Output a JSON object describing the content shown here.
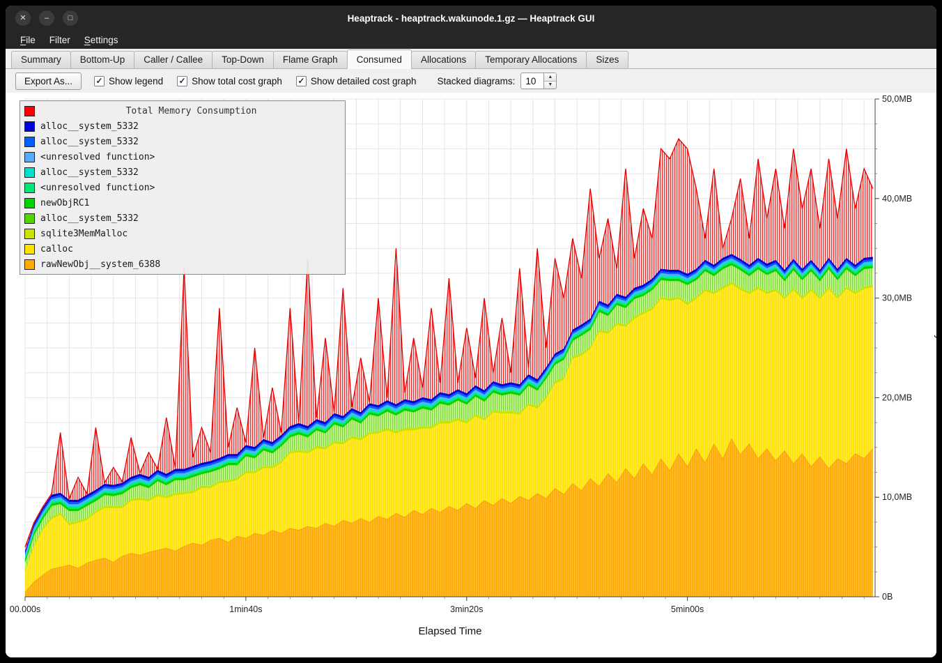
{
  "window": {
    "title": "Heaptrack - heaptrack.wakunode.1.gz — Heaptrack GUI",
    "controls": [
      {
        "name": "close",
        "glyph": "✕"
      },
      {
        "name": "minimize",
        "glyph": "–"
      },
      {
        "name": "maximize",
        "glyph": "□"
      }
    ]
  },
  "menu": {
    "items": [
      {
        "label": "File",
        "mnemonic": 0
      },
      {
        "label": "Filter",
        "mnemonic": null
      },
      {
        "label": "Settings",
        "mnemonic": 0
      }
    ]
  },
  "tabs": [
    {
      "label": "Summary",
      "active": false
    },
    {
      "label": "Bottom-Up",
      "active": false
    },
    {
      "label": "Caller / Callee",
      "active": false
    },
    {
      "label": "Top-Down",
      "active": false
    },
    {
      "label": "Flame Graph",
      "active": false
    },
    {
      "label": "Consumed",
      "active": true
    },
    {
      "label": "Allocations",
      "active": false
    },
    {
      "label": "Temporary Allocations",
      "active": false
    },
    {
      "label": "Sizes",
      "active": false
    }
  ],
  "toolbar": {
    "export_label": "Export As...",
    "checkboxes": [
      {
        "label": "Show legend",
        "checked": true
      },
      {
        "label": "Show total cost graph",
        "checked": true
      },
      {
        "label": "Show detailed cost graph",
        "checked": true
      }
    ],
    "stacked_label": "Stacked diagrams:",
    "stacked_value": "10"
  },
  "legend": {
    "title": {
      "label": "Total Memory Consumption",
      "color": "#ff0000"
    },
    "items": [
      {
        "label": "alloc__system_5332",
        "color": "#0000dd"
      },
      {
        "label": "alloc__system_5332",
        "color": "#0060ff"
      },
      {
        "label": "<unresolved function>",
        "color": "#58aaff"
      },
      {
        "label": "alloc__system_5332",
        "color": "#00e0cc"
      },
      {
        "label": "<unresolved function>",
        "color": "#00e878"
      },
      {
        "label": "newObjRC1",
        "color": "#00d400"
      },
      {
        "label": "alloc__system_5332",
        "color": "#55d400"
      },
      {
        "label": "sqlite3MemMalloc",
        "color": "#c8e400"
      },
      {
        "label": "calloc",
        "color": "#ffe200"
      },
      {
        "label": "rawNewObj__system_6388",
        "color": "#ffaa00"
      }
    ]
  },
  "chart_data": {
    "type": "area",
    "stacked": true,
    "title": "Total Memory Consumption",
    "xlabel": "Elapsed Time",
    "ylabel": "Memory Consumed",
    "x_unit": "seconds",
    "x_step": 4,
    "x_max": 385,
    "y_max": 50,
    "grid": {
      "x_minor": 10,
      "y_minor": 2.5
    },
    "x_ticks": [
      {
        "t": 0,
        "label": "00.000s"
      },
      {
        "t": 100,
        "label": "1min40s"
      },
      {
        "t": 200,
        "label": "3min20s"
      },
      {
        "t": 300,
        "label": "5min00s"
      }
    ],
    "y_ticks": [
      {
        "v": 0,
        "label": "0B"
      },
      {
        "v": 10,
        "label": "10,0MB"
      },
      {
        "v": 20,
        "label": "20,0MB"
      },
      {
        "v": 30,
        "label": "30,0MB"
      },
      {
        "v": 40,
        "label": "40,0MB"
      },
      {
        "v": 50,
        "label": "50,0MB"
      }
    ],
    "series": [
      {
        "name": "rawNewObj__system_6388",
        "fill": "#ffaa00",
        "stripe": "rgba(255,255,255,0.22)",
        "line": "#ef9000",
        "values": [
          0.5,
          1.5,
          2.2,
          2.8,
          3.0,
          3.2,
          2.9,
          3.4,
          3.7,
          3.9,
          3.5,
          4.1,
          4.4,
          4.2,
          4.5,
          4.7,
          4.9,
          4.6,
          5.1,
          5.4,
          5.2,
          5.7,
          5.9,
          5.5,
          6.1,
          5.9,
          6.4,
          6.2,
          6.7,
          6.4,
          6.9,
          6.7,
          7.1,
          6.9,
          7.4,
          7.1,
          7.7,
          7.4,
          7.9,
          7.5,
          8.1,
          7.8,
          8.4,
          8.0,
          8.7,
          8.3,
          8.9,
          8.5,
          9.1,
          8.7,
          9.4,
          8.9,
          9.7,
          9.2,
          9.9,
          9.4,
          10.1,
          9.7,
          10.4,
          9.9,
          10.9,
          10.3,
          11.4,
          10.7,
          11.9,
          11.1,
          12.4,
          11.5,
          12.9,
          11.9,
          13.4,
          12.3,
          13.9,
          12.7,
          14.4,
          13.1,
          14.9,
          13.5,
          15.4,
          13.9,
          15.9,
          14.3,
          15.4,
          13.9,
          14.9,
          13.7,
          14.7,
          13.4,
          14.4,
          13.1,
          14.1,
          12.9,
          13.9,
          13.4,
          14.4,
          13.9,
          14.9
        ]
      },
      {
        "name": "calloc",
        "fill": "#ffe200",
        "stripe": "rgba(255,255,255,0.28)",
        "line": null,
        "values": [
          2.0,
          3.5,
          4.5,
          5.0,
          5.2,
          4.0,
          4.5,
          4.3,
          4.7,
          5.0,
          5.4,
          4.8,
          5.2,
          5.5,
          5.1,
          5.4,
          5.0,
          5.6,
          5.2,
          5.0,
          5.7,
          5.2,
          5.5,
          6.0,
          5.6,
          6.5,
          6.0,
          6.7,
          6.2,
          7.0,
          7.5,
          7.8,
          7.3,
          8.0,
          7.4,
          8.3,
          7.6,
          8.5,
          7.8,
          8.8,
          8.3,
          8.9,
          8.0,
          8.7,
          8.0,
          8.6,
          8.0,
          8.9,
          8.3,
          9.0,
          8.0,
          9.2,
          8.0,
          9.3,
          8.5,
          9.0,
          8.2,
          9.5,
          8.5,
          10.0,
          10.5,
          11.5,
          12.5,
          13.5,
          13.0,
          15.5,
          14.0,
          15.8,
          14.2,
          16.0,
          15.0,
          16.5,
          16.0,
          17.0,
          15.5,
          16.2,
          15.0,
          17.2,
          15.0,
          17.0,
          15.5,
          16.5,
          15.0,
          17.0,
          15.5,
          17.0,
          15.2,
          17.4,
          15.5,
          17.6,
          15.8,
          18.0,
          16.0,
          17.5,
          16.0,
          17.0,
          16.2
        ]
      },
      {
        "name": "sqlite3MemMalloc",
        "fill": "#c8e400",
        "constant": 0.25
      },
      {
        "name": "alloc__system_5332",
        "fill": "#ccf49a",
        "stripe": "#77dd33",
        "line": "#2fd000",
        "values": [
          0.8,
          1.0,
          0.9,
          1.1,
          0.9,
          1.2,
          1.0,
          1.2,
          1.0,
          1.1,
          1.0,
          1.2,
          1.1,
          1.3,
          1.1,
          1.3,
          1.1,
          1.3,
          1.2,
          1.4,
          1.2,
          1.4,
          1.2,
          1.5,
          1.3,
          1.5,
          1.3,
          1.6,
          1.3,
          1.5,
          1.4,
          1.6,
          1.4,
          1.6,
          1.4,
          1.7,
          1.5,
          1.7,
          1.5,
          1.8,
          1.5,
          1.7,
          1.6,
          1.8,
          1.6,
          1.8,
          1.6,
          1.8,
          1.6,
          1.8,
          1.7,
          1.8,
          1.7,
          1.8,
          1.6,
          1.8,
          1.7,
          1.8,
          1.6,
          1.8,
          1.7,
          1.8,
          1.6,
          1.8,
          1.7,
          1.8,
          1.6,
          1.8,
          1.7,
          1.8,
          1.6,
          1.8,
          1.7,
          1.8,
          1.6,
          1.8,
          1.7,
          1.8,
          1.6,
          1.8,
          1.7,
          1.8,
          1.6,
          1.8,
          1.7,
          1.8,
          1.6,
          1.8,
          1.7,
          1.8,
          1.6,
          1.8,
          1.7,
          1.8,
          1.6,
          1.8,
          1.7
        ]
      },
      {
        "name": "newObjRC1",
        "fill": "#00d400",
        "constant": 0.2
      },
      {
        "name": "<unresolved function>",
        "fill": "#00e878",
        "constant": 0.15
      },
      {
        "name": "alloc__system_5332",
        "fill": "#00e0cc",
        "constant": 0.15
      },
      {
        "name": "<unresolved function>",
        "fill": "#58aaff",
        "constant": 0.15
      },
      {
        "name": "alloc__system_5332",
        "fill": "#0060ff",
        "constant": 0.2
      },
      {
        "name": "alloc__system_5332",
        "fill": "#0000dd",
        "constant": 0.25
      }
    ],
    "total": {
      "name": "Total Memory Consumption",
      "line": "#e60000",
      "fill": "#fdecec",
      "stripe": "#f03030",
      "values": [
        5,
        7,
        8.5,
        7.5,
        16.5,
        9,
        12,
        10,
        17,
        11,
        13,
        11.5,
        16,
        12,
        14.5,
        12.5,
        18,
        13,
        33,
        14,
        17,
        14.5,
        29,
        15,
        19,
        15.5,
        25,
        16,
        21,
        16.5,
        29,
        17.5,
        34,
        18,
        26,
        18.5,
        31,
        19,
        24,
        19.5,
        30,
        20,
        35,
        20.5,
        26,
        21,
        29,
        21.5,
        32,
        21.5,
        27,
        22,
        30,
        22.5,
        28,
        22.5,
        33,
        23,
        35,
        25,
        34,
        30,
        36,
        32,
        41,
        34,
        38,
        33,
        43,
        34,
        39,
        36,
        45,
        44,
        46,
        45,
        41,
        36,
        43,
        35,
        38,
        42,
        36,
        44,
        38,
        43,
        37,
        45,
        39,
        43,
        37,
        44,
        38,
        45,
        39,
        43,
        41
      ]
    }
  }
}
